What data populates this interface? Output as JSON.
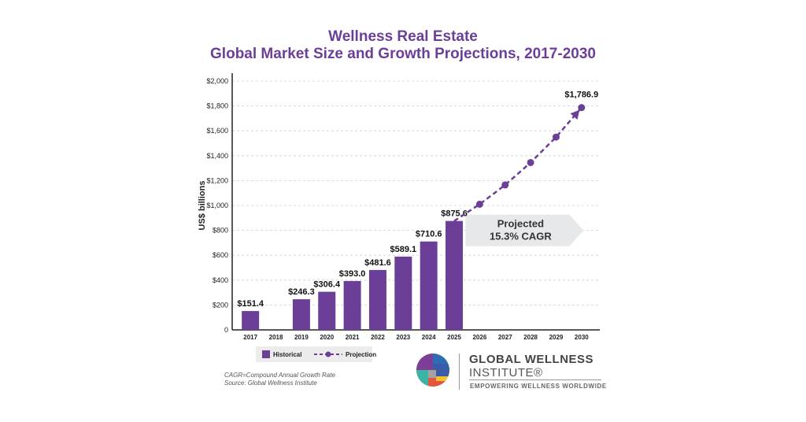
{
  "chart_data": {
    "type": "bar",
    "title": "Wellness Real Estate",
    "subtitle": "Global Market Size and Growth Projections, 2017-2030",
    "ylabel": "US$ billions",
    "ylim": [
      0,
      2000
    ],
    "yticks": [
      "0",
      "$200",
      "$400",
      "$600",
      "$800",
      "$1,000",
      "$1,200",
      "$1,400",
      "$1,600",
      "$1,800",
      "$2,000"
    ],
    "categories": [
      "2017",
      "2018",
      "2019",
      "2020",
      "2021",
      "2022",
      "2023",
      "2024",
      "2025",
      "2026",
      "2027",
      "2028",
      "2029",
      "2030"
    ],
    "series": [
      {
        "name": "Historical",
        "type": "bar",
        "color": "#6b3f98",
        "points": [
          {
            "x": "2017",
            "y": 151.4,
            "label": "$151.4"
          },
          {
            "x": "2019",
            "y": 246.3,
            "label": "$246.3"
          },
          {
            "x": "2020",
            "y": 306.4,
            "label": "$306.4"
          },
          {
            "x": "2021",
            "y": 393.0,
            "label": "$393.0"
          },
          {
            "x": "2022",
            "y": 481.6,
            "label": "$481.6"
          },
          {
            "x": "2023",
            "y": 589.1,
            "label": "$589.1"
          },
          {
            "x": "2024",
            "y": 710.6,
            "label": "$710.6"
          },
          {
            "x": "2025",
            "y": 875.6,
            "label": "$875.6"
          }
        ]
      },
      {
        "name": "Projection",
        "type": "line",
        "style": "dashed",
        "color": "#6b3f98",
        "points": [
          {
            "x": "2025",
            "y": 875.6
          },
          {
            "x": "2026",
            "y": 1010
          },
          {
            "x": "2027",
            "y": 1165
          },
          {
            "x": "2028",
            "y": 1345
          },
          {
            "x": "2029",
            "y": 1550
          },
          {
            "x": "2030",
            "y": 1786.9,
            "label": "$1,786.9"
          }
        ]
      }
    ],
    "annotation": {
      "line1": "Projected",
      "line2": "15.3% CAGR"
    },
    "grid": true,
    "legend": "bottom-left"
  },
  "notes": {
    "line1": "CAGR=Compound Annual Growth Rate",
    "line2": "Source: Global Wellness Institute"
  },
  "logo": {
    "line1": "GLOBAL WELLNESS",
    "line2": "INSTITUTE®",
    "tagline": "EMPOWERING WELLNESS WORLDWIDE"
  }
}
